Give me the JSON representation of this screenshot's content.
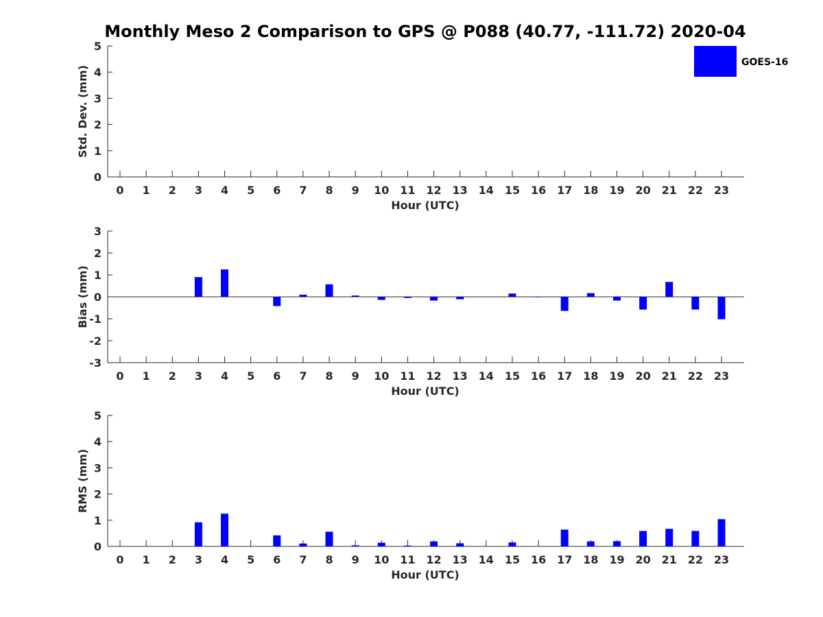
{
  "title": "Monthly Meso 2 Comparison to GPS @ P088 (40.77, -111.72) 2020-04",
  "legend": {
    "label": "GOES-16",
    "color": "#0000ff"
  },
  "chart_data": [
    {
      "id": "std",
      "type": "bar",
      "title": "Monthly Meso 2 Comparison to GPS @ P088 (40.77, -111.72) 2020-04",
      "xlabel": "Hour (UTC)",
      "ylabel": "Std. Dev. (mm)",
      "ylim": [
        0,
        5
      ],
      "yticks": [
        0,
        1,
        2,
        3,
        4,
        5
      ],
      "x": [
        0,
        1,
        2,
        3,
        4,
        5,
        6,
        7,
        8,
        9,
        10,
        11,
        12,
        13,
        14,
        15,
        16,
        17,
        18,
        19,
        20,
        21,
        22,
        23
      ],
      "series": [
        {
          "name": "GOES-16",
          "color": "#0000ff",
          "values": [
            0,
            0,
            0,
            0,
            0,
            0,
            0,
            0,
            0,
            0,
            0,
            0,
            0,
            0,
            0,
            0,
            0,
            0,
            0,
            0,
            0,
            0,
            0,
            0
          ]
        }
      ],
      "legend": "top-right",
      "grid": false
    },
    {
      "id": "bias",
      "type": "bar",
      "xlabel": "Hour (UTC)",
      "ylabel": "Bias (mm)",
      "ylim": [
        -3,
        3
      ],
      "yticks": [
        -3,
        -2,
        -1,
        0,
        1,
        2,
        3
      ],
      "x": [
        0,
        1,
        2,
        3,
        4,
        5,
        6,
        7,
        8,
        9,
        10,
        11,
        12,
        13,
        14,
        15,
        16,
        17,
        18,
        19,
        20,
        21,
        22,
        23
      ],
      "series": [
        {
          "name": "GOES-16",
          "color": "#0000ff",
          "values": [
            0,
            0,
            0,
            0.9,
            1.25,
            0,
            -0.42,
            0.1,
            0.57,
            0.06,
            -0.14,
            -0.05,
            -0.17,
            -0.11,
            0,
            0.15,
            -0.02,
            -0.64,
            0.17,
            -0.17,
            -0.58,
            0.68,
            -0.58,
            -1.02
          ]
        }
      ],
      "grid": false
    },
    {
      "id": "rms",
      "type": "bar",
      "xlabel": "Hour (UTC)",
      "ylabel": "RMS (mm)",
      "ylim": [
        0,
        5
      ],
      "yticks": [
        0,
        1,
        2,
        3,
        4,
        5
      ],
      "x": [
        0,
        1,
        2,
        3,
        4,
        5,
        6,
        7,
        8,
        9,
        10,
        11,
        12,
        13,
        14,
        15,
        16,
        17,
        18,
        19,
        20,
        21,
        22,
        23
      ],
      "series": [
        {
          "name": "GOES-16",
          "color": "#0000ff",
          "values": [
            0,
            0,
            0,
            0.92,
            1.25,
            0,
            0.42,
            0.11,
            0.56,
            0.04,
            0.14,
            0.03,
            0.19,
            0.12,
            0,
            0.15,
            0,
            0.64,
            0.19,
            0.2,
            0.59,
            0.67,
            0.59,
            1.04
          ]
        }
      ],
      "grid": false
    }
  ]
}
